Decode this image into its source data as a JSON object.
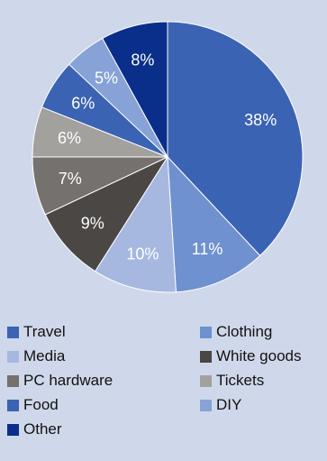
{
  "chart_data": {
    "type": "pie",
    "title": "",
    "slices": [
      {
        "name": "Travel",
        "value": 38,
        "label": "38%",
        "color": "#3b63b3",
        "label_color": "#ffffff"
      },
      {
        "name": "Clothing",
        "value": 11,
        "label": "11%",
        "color": "#6f91cf",
        "label_color": "#ffffff"
      },
      {
        "name": "Media",
        "value": 10,
        "label": "10%",
        "color": "#a6b8e0",
        "label_color": "#ffffff"
      },
      {
        "name": "White goods",
        "value": 9,
        "label": "9%",
        "color": "#4a4745",
        "label_color": "#ffffff"
      },
      {
        "name": "PC hardware",
        "value": 7,
        "label": "7%",
        "color": "#74716e",
        "label_color": "#ffffff"
      },
      {
        "name": "Tickets",
        "value": 6,
        "label": "6%",
        "color": "#a3a19e",
        "label_color": "#ffffff"
      },
      {
        "name": "Food",
        "value": 6,
        "label": "6%",
        "color": "#3b63b3",
        "label_color": "#ffffff"
      },
      {
        "name": "DIY",
        "value": 5,
        "label": "5%",
        "color": "#86a2d6",
        "label_color": "#ffffff"
      },
      {
        "name": "Other",
        "value": 8,
        "label": "8%",
        "color": "#0a2f8a",
        "label_color": "#ffffff"
      }
    ],
    "legend_position": "bottom"
  }
}
